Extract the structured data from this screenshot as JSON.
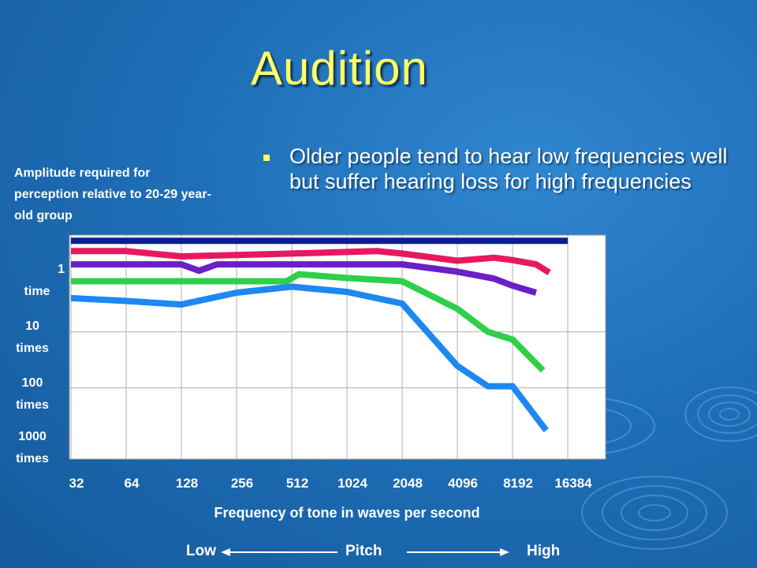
{
  "slide": {
    "title": "Audition",
    "bullet": "Older people tend to hear low frequencies well but suffer hearing loss for high frequencies",
    "y_axis_note": "Amplitude required for perception relative to 20-29 year-old group",
    "pitch": {
      "low": "Low",
      "mid": "Pitch",
      "high": "High"
    },
    "colors": {
      "title": "#ffff66",
      "background": "#1f6fb8",
      "plot_bg": "#ffffff"
    }
  },
  "chart_data": {
    "type": "line",
    "title": "",
    "xlabel": "Frequency of tone in waves per second",
    "ylabel": "",
    "x_ticks": [
      "32",
      "64",
      "128",
      "256",
      "512",
      "1024",
      "2048",
      "4096",
      "8192",
      "16384"
    ],
    "x_scale": "log2",
    "y_ticks": [
      {
        "line1": "1",
        "line2": "time",
        "value": 1
      },
      {
        "line1": "10",
        "line2": "times",
        "value": 10
      },
      {
        "line1": "100",
        "line2": "times",
        "value": 100
      },
      {
        "line1": "1000",
        "line2": "times",
        "value": 1000
      }
    ],
    "y_scale": "log10",
    "ylim": [
      0.3,
      3000
    ],
    "grid": true,
    "series": [
      {
        "color": "#0b1f8f",
        "points": [
          [
            32,
            0.38
          ],
          [
            16384,
            0.38
          ]
        ]
      },
      {
        "color": "#e8185f",
        "points": [
          [
            32,
            0.58
          ],
          [
            64,
            0.58
          ],
          [
            128,
            0.72
          ],
          [
            256,
            0.68
          ],
          [
            512,
            0.64
          ],
          [
            1024,
            0.6
          ],
          [
            1500,
            0.58
          ],
          [
            2048,
            0.64
          ],
          [
            4096,
            0.86
          ],
          [
            6500,
            0.76
          ],
          [
            8192,
            0.84
          ],
          [
            11000,
            1.0
          ],
          [
            13000,
            1.4
          ]
        ]
      },
      {
        "color": "#6a1fc8",
        "points": [
          [
            32,
            1.0
          ],
          [
            64,
            1.0
          ],
          [
            128,
            1.0
          ],
          [
            160,
            1.3
          ],
          [
            200,
            1.0
          ],
          [
            512,
            1.0
          ],
          [
            1024,
            1.0
          ],
          [
            2048,
            1.0
          ],
          [
            4096,
            1.35
          ],
          [
            6500,
            1.8
          ],
          [
            8192,
            2.4
          ],
          [
            11000,
            3.2
          ]
        ]
      },
      {
        "color": "#2fcf4a",
        "points": [
          [
            32,
            2.0
          ],
          [
            64,
            2.0
          ],
          [
            128,
            2.0
          ],
          [
            256,
            2.0
          ],
          [
            480,
            2.0
          ],
          [
            560,
            1.5
          ],
          [
            1024,
            1.75
          ],
          [
            2048,
            2.0
          ],
          [
            4096,
            6.2
          ],
          [
            6000,
            16
          ],
          [
            8192,
            22
          ],
          [
            12000,
            78
          ]
        ]
      },
      {
        "color": "#1e88f0",
        "points": [
          [
            32,
            4.0
          ],
          [
            64,
            4.5
          ],
          [
            128,
            5.2
          ],
          [
            256,
            3.2
          ],
          [
            512,
            2.5
          ],
          [
            1024,
            3.1
          ],
          [
            2048,
            5.0
          ],
          [
            4096,
            65
          ],
          [
            6000,
            150
          ],
          [
            8192,
            150
          ],
          [
            12500,
            920
          ]
        ]
      }
    ]
  }
}
